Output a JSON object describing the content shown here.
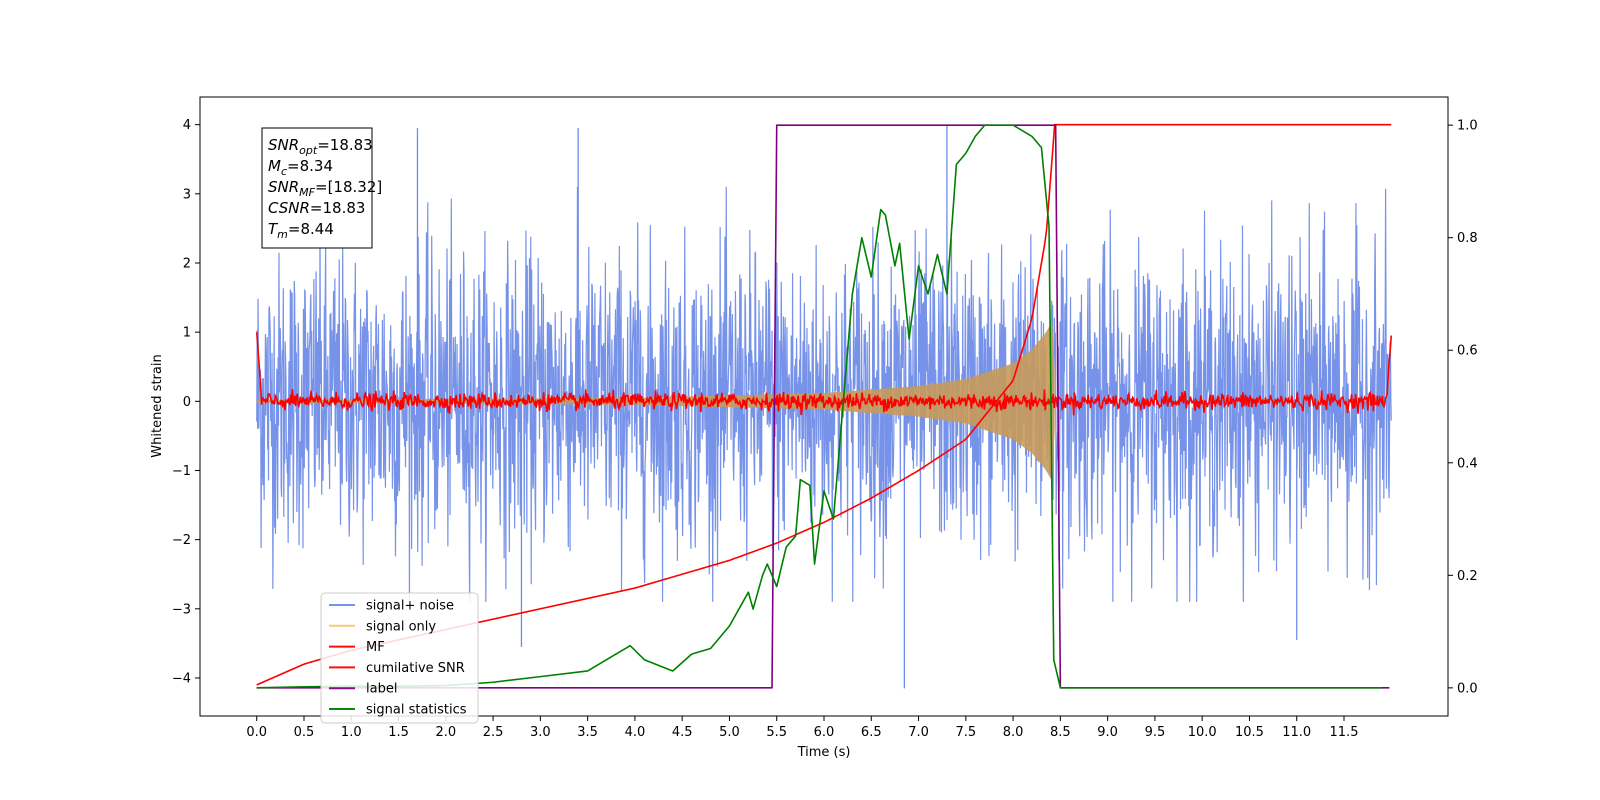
{
  "chart_data": {
    "type": "line",
    "xlabel": "Time (s)",
    "ylabel": "Whitened strain",
    "xlim": [
      -0.6,
      12.6
    ],
    "ylim": [
      -4.55,
      4.4
    ],
    "y2lim": [
      -0.05,
      1.05
    ],
    "x_ticks": [
      0.0,
      0.5,
      1.0,
      1.5,
      2.0,
      2.5,
      3.0,
      3.5,
      4.0,
      4.5,
      5.0,
      5.5,
      6.0,
      6.5,
      7.0,
      7.5,
      8.0,
      8.5,
      9.0,
      9.5,
      10.0,
      10.5,
      11.0,
      11.5
    ],
    "x_tick_labels": [
      "0.0",
      "0.5",
      "1.0",
      "1.5",
      "2.0",
      "2.5",
      "3.0",
      "3.5",
      "4.0",
      "4.5",
      "5.0",
      "5.5",
      "6.0",
      "6.5",
      "7.0",
      "7.5",
      "8.0",
      "8.5",
      "9.0",
      "9.5",
      "10.0",
      "10.5",
      "11.0",
      "11.5"
    ],
    "y_ticks": [
      -4,
      -3,
      -2,
      -1,
      0,
      1,
      2,
      3,
      4
    ],
    "y_tick_labels": [
      "−4",
      "−3",
      "−2",
      "−1",
      "0",
      "1",
      "2",
      "3",
      "4"
    ],
    "y2_ticks": [
      0.0,
      0.2,
      0.4,
      0.6,
      0.8,
      1.0
    ],
    "y2_tick_labels": [
      "0.0",
      "0.2",
      "0.4",
      "0.6",
      "0.8",
      "1.0"
    ],
    "grid": false,
    "legend_position": "bottom-left",
    "annotation_box": {
      "position": "top-left",
      "lines": [
        {
          "sym": "SNR",
          "sub": "opt",
          "val": "=18.83"
        },
        {
          "sym": "M",
          "sub": "c",
          "val": "=8.34"
        },
        {
          "sym": "SNR",
          "sub": "MF",
          "val": "=[18.32]"
        },
        {
          "sym": "CSNR",
          "sub": "",
          "val": "=18.83"
        },
        {
          "sym": "T",
          "sub": "m",
          "val": "=8.44"
        }
      ]
    },
    "series": [
      {
        "name": "signal+ noise",
        "color": "#6f8ce8",
        "axis": "left",
        "kind": "noise",
        "x_range": [
          0.0,
          12.0
        ],
        "typical_envelope": [
          -1.8,
          2.0
        ],
        "extreme_peaks": [
          [
            1.7,
            3.95
          ],
          [
            3.4,
            3.95
          ],
          [
            7.3,
            4.0
          ],
          [
            6.85,
            -4.15
          ],
          [
            11.0,
            -3.45
          ],
          [
            2.8,
            -3.55
          ]
        ]
      },
      {
        "name": "signal only",
        "color": "#f7c97a",
        "axis": "left",
        "kind": "chirp",
        "merger_time": 8.44,
        "envelope": [
          [
            0.0,
            0.02
          ],
          [
            4.0,
            0.05
          ],
          [
            6.0,
            0.12
          ],
          [
            7.0,
            0.22
          ],
          [
            7.5,
            0.32
          ],
          [
            8.0,
            0.55
          ],
          [
            8.2,
            0.75
          ],
          [
            8.35,
            1.0
          ],
          [
            8.42,
            1.18
          ],
          [
            8.45,
            0.0
          ]
        ]
      },
      {
        "name": "MF",
        "color": "#ff0000",
        "axis": "left",
        "kind": "mf",
        "x_range": [
          0.0,
          12.0
        ],
        "noise_amplitude": 0.06,
        "edge_values": [
          1.0,
          0.95
        ]
      },
      {
        "name": "cumilative SNR",
        "color": "#ff0000",
        "axis": "left",
        "kind": "line",
        "points": [
          [
            0.0,
            -4.1
          ],
          [
            0.5,
            -3.8
          ],
          [
            1.0,
            -3.6
          ],
          [
            2.0,
            -3.3
          ],
          [
            3.0,
            -3.0
          ],
          [
            4.0,
            -2.7
          ],
          [
            5.0,
            -2.3
          ],
          [
            5.5,
            -2.05
          ],
          [
            6.0,
            -1.75
          ],
          [
            6.5,
            -1.4
          ],
          [
            7.0,
            -1.0
          ],
          [
            7.5,
            -0.55
          ],
          [
            8.0,
            0.3
          ],
          [
            8.2,
            1.2
          ],
          [
            8.35,
            2.4
          ],
          [
            8.44,
            4.0
          ],
          [
            12.0,
            4.0
          ]
        ]
      },
      {
        "name": "label",
        "color": "#800080",
        "axis": "right",
        "kind": "line",
        "points": [
          [
            0.0,
            0.0
          ],
          [
            5.45,
            0.0
          ],
          [
            5.5,
            1.0
          ],
          [
            8.45,
            1.0
          ],
          [
            8.5,
            0.0
          ],
          [
            11.98,
            0.0
          ]
        ]
      },
      {
        "name": "signal statistics",
        "color": "#008000",
        "axis": "right",
        "kind": "line",
        "points": [
          [
            0.0,
            0.0
          ],
          [
            0.5,
            0.002
          ],
          [
            1.0,
            0.003
          ],
          [
            1.5,
            0.003
          ],
          [
            2.0,
            0.004
          ],
          [
            2.5,
            0.01
          ],
          [
            3.0,
            0.02
          ],
          [
            3.5,
            0.03
          ],
          [
            3.8,
            0.06
          ],
          [
            3.95,
            0.075
          ],
          [
            4.1,
            0.05
          ],
          [
            4.4,
            0.03
          ],
          [
            4.6,
            0.06
          ],
          [
            4.8,
            0.07
          ],
          [
            5.0,
            0.11
          ],
          [
            5.2,
            0.17
          ],
          [
            5.25,
            0.14
          ],
          [
            5.35,
            0.2
          ],
          [
            5.4,
            0.22
          ],
          [
            5.5,
            0.18
          ],
          [
            5.6,
            0.25
          ],
          [
            5.7,
            0.27
          ],
          [
            5.75,
            0.37
          ],
          [
            5.85,
            0.36
          ],
          [
            5.9,
            0.22
          ],
          [
            6.0,
            0.35
          ],
          [
            6.1,
            0.3
          ],
          [
            6.2,
            0.5
          ],
          [
            6.3,
            0.7
          ],
          [
            6.4,
            0.8
          ],
          [
            6.5,
            0.73
          ],
          [
            6.6,
            0.85
          ],
          [
            6.65,
            0.84
          ],
          [
            6.75,
            0.75
          ],
          [
            6.8,
            0.79
          ],
          [
            6.9,
            0.62
          ],
          [
            7.0,
            0.75
          ],
          [
            7.1,
            0.7
          ],
          [
            7.2,
            0.77
          ],
          [
            7.3,
            0.7
          ],
          [
            7.4,
            0.93
          ],
          [
            7.5,
            0.95
          ],
          [
            7.6,
            0.98
          ],
          [
            7.7,
            1.0
          ],
          [
            8.0,
            1.0
          ],
          [
            8.2,
            0.98
          ],
          [
            8.3,
            0.96
          ],
          [
            8.38,
            0.82
          ],
          [
            8.43,
            0.05
          ],
          [
            8.5,
            0.0
          ],
          [
            11.9,
            0.0
          ]
        ]
      }
    ]
  }
}
